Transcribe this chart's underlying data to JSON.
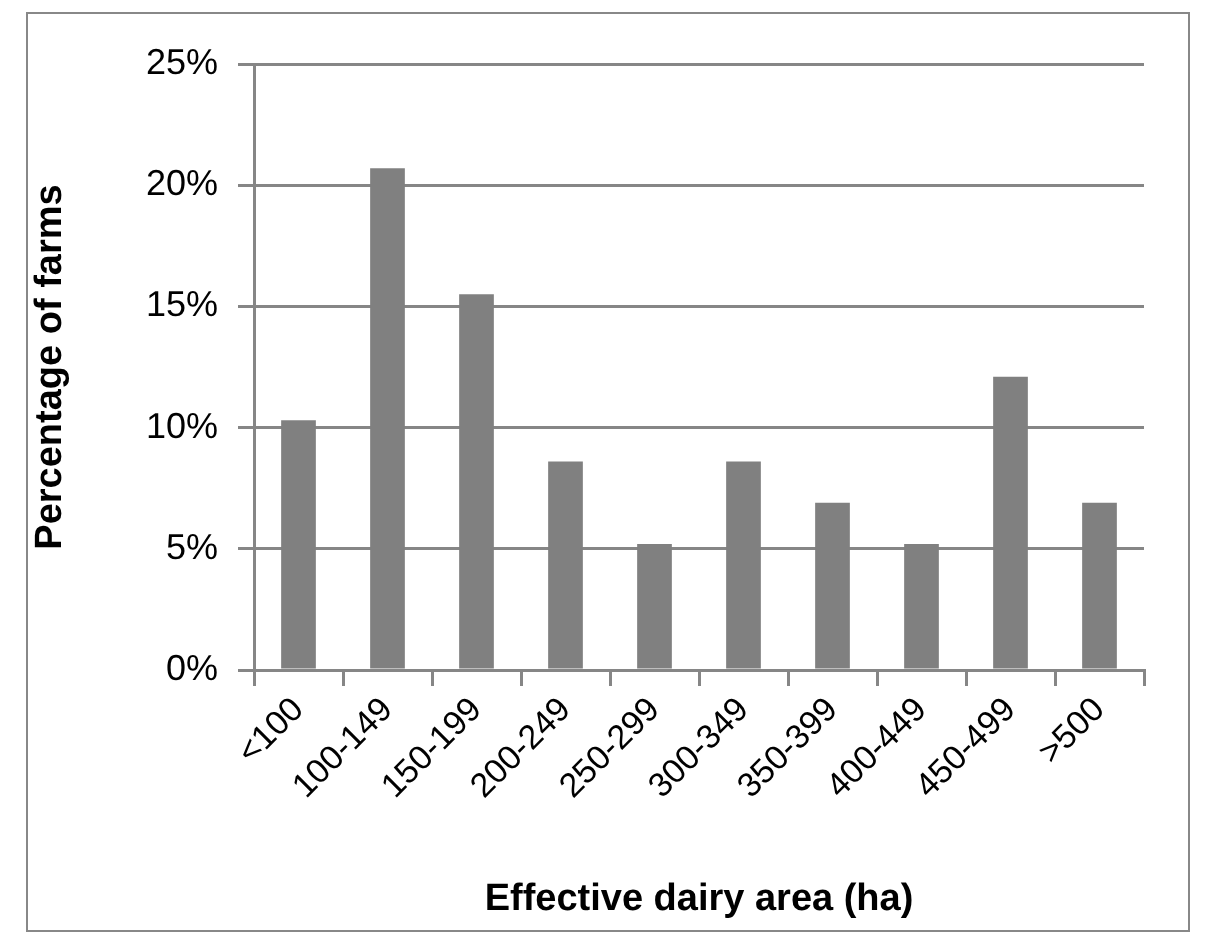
{
  "chart_data": {
    "type": "bar",
    "xlabel": "Effective dairy area (ha)",
    "ylabel": "Percentage of farms",
    "categories": [
      "<100",
      "100-149",
      "150-199",
      "200-249",
      "250-299",
      "300-349",
      "350-399",
      "400-449",
      "450-499",
      ">500"
    ],
    "values": [
      10.3,
      20.7,
      15.5,
      8.6,
      5.2,
      8.6,
      6.9,
      5.2,
      12.1,
      6.9
    ],
    "color": "#808080",
    "ylim": [
      0,
      25
    ],
    "yticks": [
      {
        "value": 0,
        "label": "0%"
      },
      {
        "value": 5,
        "label": "5%"
      },
      {
        "value": 10,
        "label": "10%"
      },
      {
        "value": 15,
        "label": "15%"
      },
      {
        "value": 20,
        "label": "20%"
      },
      {
        "value": 25,
        "label": "25%"
      }
    ],
    "grid": "y"
  }
}
